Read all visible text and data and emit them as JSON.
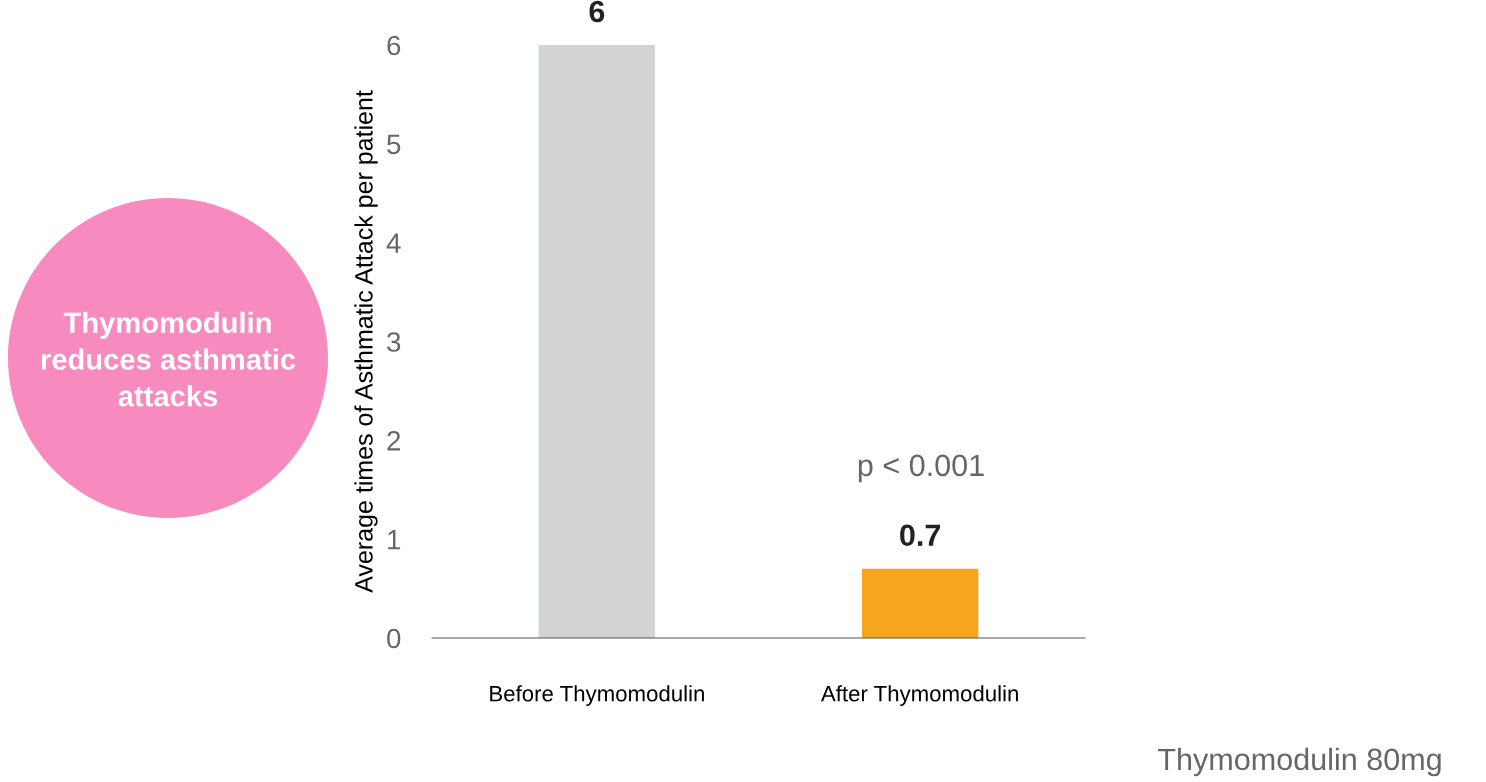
{
  "chart_data": {
    "type": "bar",
    "title": "Thymomodulin reduces asthmatic attacks",
    "categories": [
      "Before Thymomodulin",
      "After Thymomodulin"
    ],
    "values": [
      6,
      0.7
    ],
    "colors": [
      "#d1d3d4",
      "#f6a51f"
    ],
    "ylabel": "Average times of Asthmatic Attack per patient",
    "ylim": [
      0,
      6
    ],
    "yticks": [
      0,
      1,
      2,
      3,
      4,
      5,
      6
    ],
    "data_labels": true,
    "grid": false,
    "annotations": [
      "p < 0.001",
      "Thymomodulin 80mg"
    ]
  }
}
